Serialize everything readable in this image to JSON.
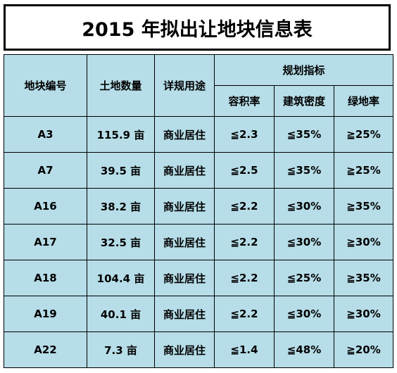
{
  "title": "2015 年拟出让地块信息表",
  "colors": {
    "cell_background": "#b6dde8",
    "border": "#000000",
    "title_background": "#ffffff"
  },
  "headers": {
    "lot_no": "地块编号",
    "area": "土地数量",
    "use": "详规用途",
    "planning": "规划指标",
    "far": "容积率",
    "coverage": "建筑密度",
    "green": "绿地率"
  },
  "rows": [
    {
      "lot": "A3",
      "area": "115.9 亩",
      "use": "商业居住",
      "far": "≦2.3",
      "coverage": "≦35%",
      "green": "≧25%"
    },
    {
      "lot": "A7",
      "area": "39.5 亩",
      "use": "商业居住",
      "far": "≦2.5",
      "coverage": "≦35%",
      "green": "≧25%"
    },
    {
      "lot": "A16",
      "area": "38.2 亩",
      "use": "商业居住",
      "far": "≦2.2",
      "coverage": "≦30%",
      "green": "≧35%"
    },
    {
      "lot": "A17",
      "area": "32.5 亩",
      "use": "商业居住",
      "far": "≦2.2",
      "coverage": "≦30%",
      "green": "≧30%"
    },
    {
      "lot": "A18",
      "area": "104.4 亩",
      "use": "商业居住",
      "far": "≦2.2",
      "coverage": "≦25%",
      "green": "≧35%"
    },
    {
      "lot": "A19",
      "area": "40.1 亩",
      "use": "商业居住",
      "far": "≦2.2",
      "coverage": "≦30%",
      "green": "≧30%"
    },
    {
      "lot": "A22",
      "area": "7.3 亩",
      "use": "商业居住",
      "far": "≦1.4",
      "coverage": "≦48%",
      "green": "≧20%"
    }
  ]
}
